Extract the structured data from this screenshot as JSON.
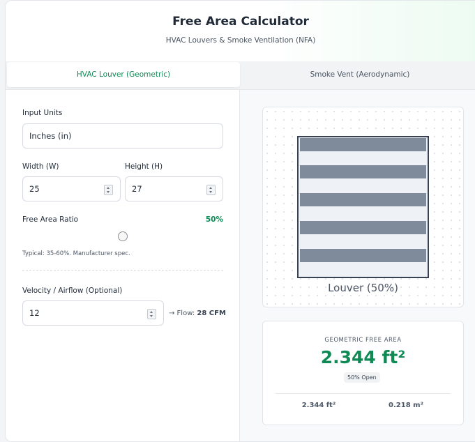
{
  "header": {
    "title": "Free Area Calculator",
    "subtitle": "HVAC Louvers & Smoke Ventilation (NFA)"
  },
  "tabs": [
    {
      "label": "HVAC Louver (Geometric)",
      "active": true
    },
    {
      "label": "Smoke Vent (Aerodynamic)",
      "active": false
    }
  ],
  "form": {
    "units": {
      "label": "Input Units",
      "value": "Inches (in)"
    },
    "width": {
      "label": "Width (W)",
      "value": "25"
    },
    "height": {
      "label": "Height (H)",
      "value": "27"
    },
    "ratio": {
      "label": "Free Area Ratio",
      "value": "50%",
      "hint": "Typical: 35-60%. Manufacturer spec."
    },
    "velocity": {
      "label": "Velocity / Airflow (Optional)",
      "value": "12",
      "flow_label": "→ Flow:",
      "flow_value": "28 CFM"
    }
  },
  "preview": {
    "caption": "Louver (50%)"
  },
  "result": {
    "label": "GEOMETRIC FREE AREA",
    "value": "2.344 ft²",
    "badge": "50% Open",
    "imperial": "2.344 ft²",
    "metric": "0.218 m²"
  }
}
